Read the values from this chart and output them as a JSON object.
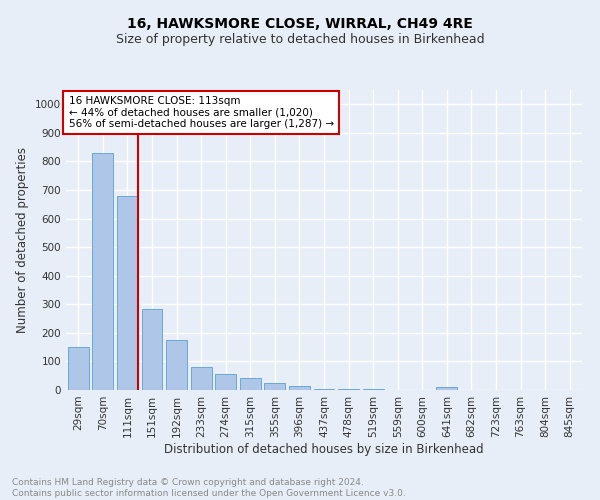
{
  "title": "16, HAWKSMORE CLOSE, WIRRAL, CH49 4RE",
  "subtitle": "Size of property relative to detached houses in Birkenhead",
  "xlabel": "Distribution of detached houses by size in Birkenhead",
  "ylabel": "Number of detached properties",
  "bar_labels": [
    "29sqm",
    "70sqm",
    "111sqm",
    "151sqm",
    "192sqm",
    "233sqm",
    "274sqm",
    "315sqm",
    "355sqm",
    "396sqm",
    "437sqm",
    "478sqm",
    "519sqm",
    "559sqm",
    "600sqm",
    "641sqm",
    "682sqm",
    "723sqm",
    "763sqm",
    "804sqm",
    "845sqm"
  ],
  "bar_values": [
    150,
    830,
    680,
    285,
    175,
    80,
    55,
    42,
    25,
    15,
    5,
    5,
    5,
    0,
    0,
    10,
    0,
    0,
    0,
    0,
    0
  ],
  "bar_color": "#aec6e8",
  "bar_edge_color": "#5a9fd4",
  "vline_x": 2,
  "vline_color": "#cc0000",
  "annotation_text": "16 HAWKSMORE CLOSE: 113sqm\n← 44% of detached houses are smaller (1,020)\n56% of semi-detached houses are larger (1,287) →",
  "annotation_box_color": "#ffffff",
  "annotation_box_edge": "#cc0000",
  "ylim": [
    0,
    1050
  ],
  "yticks": [
    0,
    100,
    200,
    300,
    400,
    500,
    600,
    700,
    800,
    900,
    1000
  ],
  "footnote": "Contains HM Land Registry data © Crown copyright and database right 2024.\nContains public sector information licensed under the Open Government Licence v3.0.",
  "background_color": "#e8eef7",
  "plot_bg_color": "#e8eef7",
  "grid_color": "#ffffff",
  "title_fontsize": 10,
  "subtitle_fontsize": 9,
  "label_fontsize": 8.5,
  "tick_fontsize": 7.5,
  "footnote_fontsize": 6.5,
  "annotation_fontsize": 7.5
}
